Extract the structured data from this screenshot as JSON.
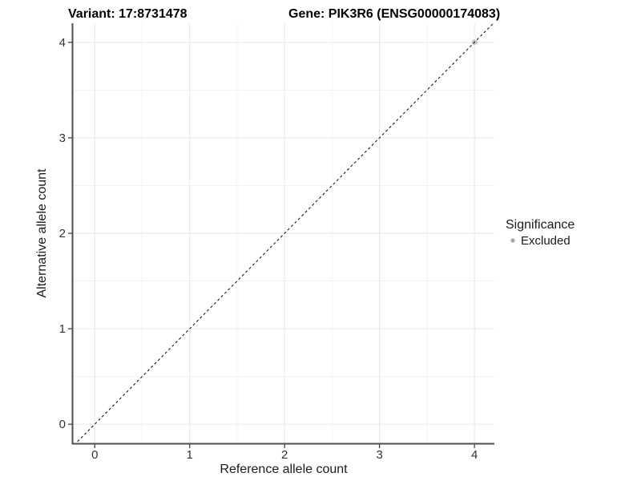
{
  "header": {
    "variant_title": "Variant: 17:8731478",
    "gene_title": "Gene: PIK3R6 (ENSG00000174083)"
  },
  "chart_data": {
    "type": "scatter",
    "title": "Variant: 17:8731478    Gene: PIK3R6 (ENSG00000174083)",
    "xlabel": "Reference allele count",
    "ylabel": "Alternative allele count",
    "xlim": [
      -0.23,
      4.21
    ],
    "ylim": [
      -0.2,
      4.2
    ],
    "xticks": [
      0,
      1,
      2,
      3,
      4
    ],
    "yticks": [
      0,
      1,
      2,
      3,
      4
    ],
    "xticks_minor": [
      0.5,
      1.5,
      2.5,
      3.5
    ],
    "yticks_minor": [
      0.5,
      1.5,
      2.5,
      3.5
    ],
    "grid": true,
    "legend_position": "right",
    "identity_line": {
      "slope": 1,
      "intercept": 0,
      "style": "dashed",
      "color": "#1a1a1a"
    },
    "series": [
      {
        "name": "Excluded",
        "color": "#bdbdbd",
        "point_opacity": 0.85,
        "points": [
          [
            4,
            4
          ]
        ]
      }
    ]
  },
  "legend": {
    "title": "Significance",
    "items": [
      {
        "label": "Excluded",
        "color": "#a6a6a6"
      }
    ]
  },
  "colors": {
    "background": "#ffffff",
    "grid_major": "#e6e6e6",
    "grid_minor": "#f2f2f2",
    "axis_line": "#4d4d4d",
    "tick_mark": "#333333",
    "tick_label": "#333333"
  }
}
